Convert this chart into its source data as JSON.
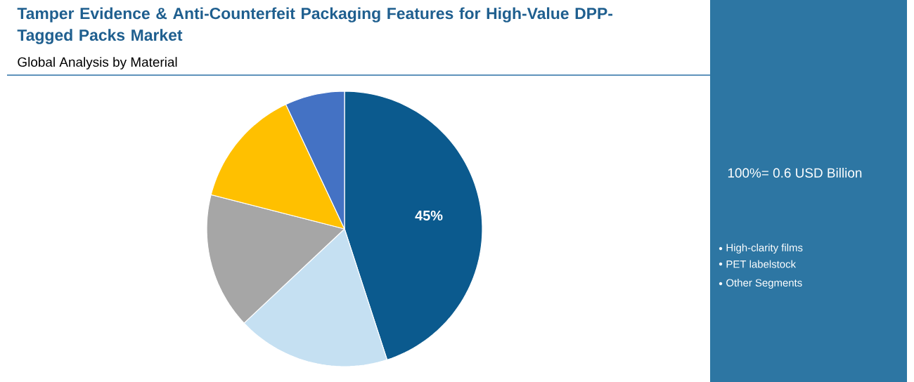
{
  "chart_data": {
    "type": "pie",
    "title": "Tamper Evidence & Anti-Counterfeit Packaging Features for High-Value DPP-Tagged Packs Market",
    "subtitle": "Global Analysis by Material",
    "categories": [
      null,
      null,
      null,
      null,
      null
    ],
    "values": [
      45,
      18,
      16,
      14,
      7
    ],
    "colors": [
      "#0b5a8e",
      "#c5e0f2",
      "#a6a6a6",
      "#ffc000",
      "#4472c4"
    ],
    "value_labels": [
      "45%",
      null,
      null,
      null,
      null
    ],
    "annotations": [
      "100%= 0.6 USD Billion",
      "High-clarity films",
      "PET labelstock",
      "Other Segments"
    ]
  }
}
